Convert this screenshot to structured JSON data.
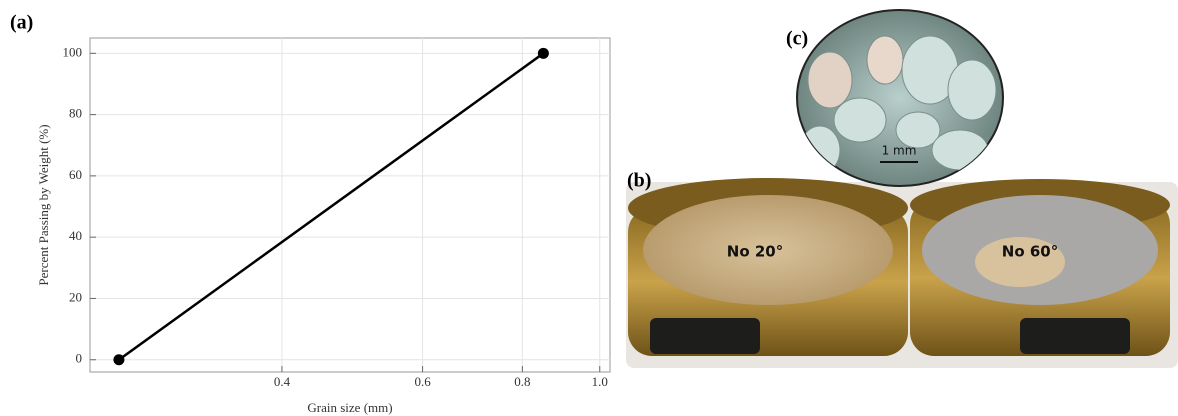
{
  "chart_data": {
    "type": "line",
    "x_label": "Grain size (mm)",
    "y_label": "Percent Passing by Weight (%)",
    "x": [
      0.25,
      0.85
    ],
    "series": [
      {
        "color": "#000000",
        "values": [
          0,
          100
        ]
      }
    ],
    "xscale": "log",
    "xlim": [
      0.23,
      1.03
    ],
    "xticks": [
      0.4,
      0.6,
      0.8,
      {
        "value": 1.0,
        "label": "1.0"
      }
    ],
    "ylim": [
      -4,
      105
    ],
    "yticks": [
      0,
      20,
      40,
      60,
      80,
      100
    ],
    "grid": true
  },
  "panels": {
    "a": "(a)",
    "b": "(b)",
    "c": "(c)"
  },
  "photo_labels": {
    "left_sieve": "No 20°",
    "right_sieve": "No 60°",
    "scale_bar": "1 mm"
  }
}
